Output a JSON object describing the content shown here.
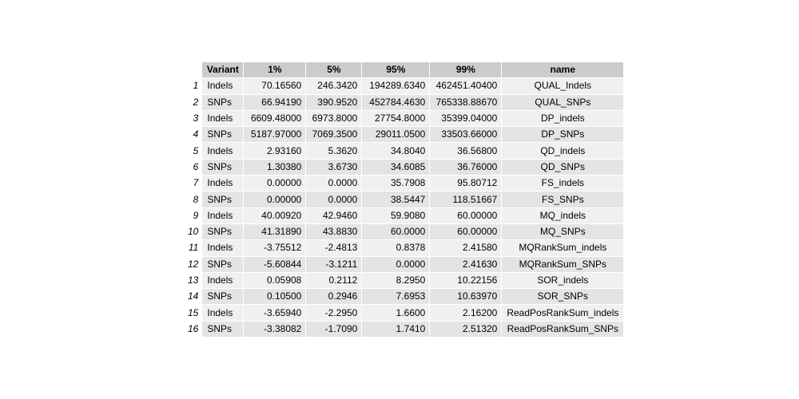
{
  "chart_data": {
    "type": "table",
    "columns": [
      "Variant",
      "1%",
      "5%",
      "95%",
      "99%",
      "name"
    ],
    "rows": [
      {
        "rn": "1",
        "cells": [
          "Indels",
          "70.16560",
          "246.3420",
          "194289.6340",
          "462451.40400",
          "QUAL_Indels"
        ]
      },
      {
        "rn": "2",
        "cells": [
          "SNPs",
          "66.94190",
          "390.9520",
          "452784.4630",
          "765338.88670",
          "QUAL_SNPs"
        ]
      },
      {
        "rn": "3",
        "cells": [
          "Indels",
          "6609.48000",
          "6973.8000",
          "27754.8000",
          "35399.04000",
          "DP_indels"
        ]
      },
      {
        "rn": "4",
        "cells": [
          "SNPs",
          "5187.97000",
          "7069.3500",
          "29011.0500",
          "33503.66000",
          "DP_SNPs"
        ]
      },
      {
        "rn": "5",
        "cells": [
          "Indels",
          "2.93160",
          "5.3620",
          "34.8040",
          "36.56800",
          "QD_indels"
        ]
      },
      {
        "rn": "6",
        "cells": [
          "SNPs",
          "1.30380",
          "3.6730",
          "34.6085",
          "36.76000",
          "QD_SNPs"
        ]
      },
      {
        "rn": "7",
        "cells": [
          "Indels",
          "0.00000",
          "0.0000",
          "35.7908",
          "95.80712",
          "FS_indels"
        ]
      },
      {
        "rn": "8",
        "cells": [
          "SNPs",
          "0.00000",
          "0.0000",
          "38.5447",
          "118.51667",
          "FS_SNPs"
        ]
      },
      {
        "rn": "9",
        "cells": [
          "Indels",
          "40.00920",
          "42.9460",
          "59.9080",
          "60.00000",
          "MQ_indels"
        ]
      },
      {
        "rn": "10",
        "cells": [
          "SNPs",
          "41.31890",
          "43.8830",
          "60.0000",
          "60.00000",
          "MQ_SNPs"
        ]
      },
      {
        "rn": "11",
        "cells": [
          "Indels",
          "-3.75512",
          "-2.4813",
          "0.8378",
          "2.41580",
          "MQRankSum_indels"
        ]
      },
      {
        "rn": "12",
        "cells": [
          "SNPs",
          "-5.60844",
          "-3.1211",
          "0.0000",
          "2.41630",
          "MQRankSum_SNPs"
        ]
      },
      {
        "rn": "13",
        "cells": [
          "Indels",
          "0.05908",
          "0.2112",
          "8.2950",
          "10.22156",
          "SOR_indels"
        ]
      },
      {
        "rn": "14",
        "cells": [
          "SNPs",
          "0.10500",
          "0.2946",
          "7.6953",
          "10.63970",
          "SOR_SNPs"
        ]
      },
      {
        "rn": "15",
        "cells": [
          "Indels",
          "-3.65940",
          "-2.2950",
          "1.6600",
          "2.16200",
          "ReadPosRankSum_indels"
        ]
      },
      {
        "rn": "16",
        "cells": [
          "SNPs",
          "-3.38082",
          "-1.7090",
          "1.7410",
          "2.51320",
          "ReadPosRankSum_SNPs"
        ]
      }
    ]
  }
}
